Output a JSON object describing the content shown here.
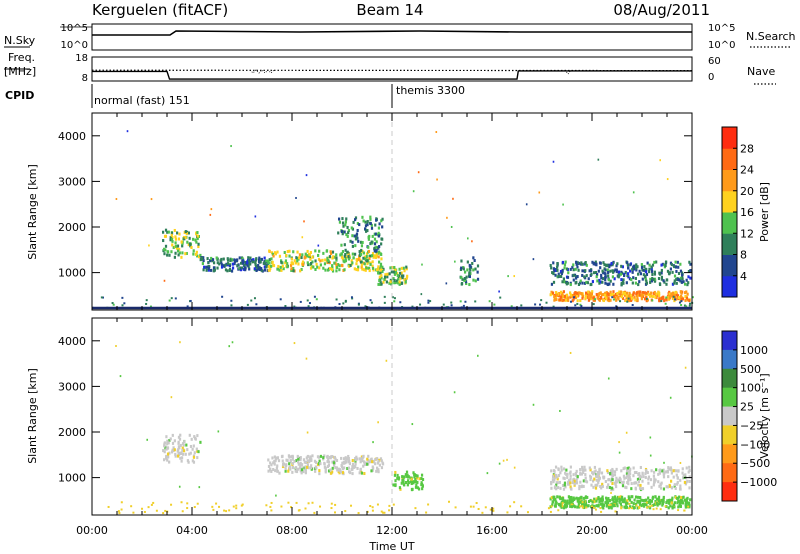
{
  "header": {
    "station": "Kerguelen (fitACF)",
    "beam": "Beam 14",
    "date": "08/Aug/2011"
  },
  "nsky_panel": {
    "left_label": "N.Sky",
    "right_label": "N.Search",
    "left_ticks": [
      "10^5",
      "10^0"
    ],
    "right_ticks": [
      "10^5",
      "10^0"
    ]
  },
  "freq_panel": {
    "left_label_top": "Freq.",
    "left_label_bottom": "[MHz]",
    "right_label": "Nave",
    "left_ticks": [
      "18",
      "8"
    ],
    "right_ticks": [
      "60",
      "0"
    ]
  },
  "cpid_panel": {
    "label": "CPID",
    "modes": [
      {
        "name": "normal (fast) 151",
        "start": 0.0
      },
      {
        "name": "themis 3300",
        "start": 12.0
      }
    ]
  },
  "time_axis": {
    "label": "Time UT",
    "ticks": [
      "00:00",
      "04:00",
      "08:00",
      "12:00",
      "16:00",
      "20:00",
      "00:00"
    ]
  },
  "range_axis": {
    "label": "Slant Range [km]",
    "ticks": [
      "1000",
      "2000",
      "3000",
      "4000"
    ]
  },
  "power_colorbar": {
    "label": "Power [dB]",
    "ticks": [
      "4",
      "8",
      "12",
      "16",
      "20",
      "24",
      "28"
    ],
    "colors": [
      "#1f2fe0",
      "#21468f",
      "#2f7f5a",
      "#4fc24f",
      "#ffd21f",
      "#ff9a1a",
      "#ff6a14",
      "#ff2d10"
    ]
  },
  "velocity_colorbar": {
    "label": "Velocity [m s⁻¹]",
    "ticks": [
      "1000",
      "500",
      "100",
      "25",
      "−25",
      "−100",
      "−500",
      "−1000"
    ],
    "colors": [
      "#2b2fd0",
      "#3a79c8",
      "#3c8a3c",
      "#57c842",
      "#c9c9c9",
      "#f0cf2a",
      "#ff9a1a",
      "#ff6a14",
      "#ff2d10"
    ]
  },
  "chart_data": {
    "type": "heatmap",
    "x_range_hours": [
      0,
      24
    ],
    "y_range_km": [
      180,
      4500
    ],
    "freq_mhz": [
      {
        "t": 0.0,
        "v": 12.0
      },
      {
        "t": 3.0,
        "v": 12.0
      },
      {
        "t": 3.1,
        "v": 8.8
      },
      {
        "t": 17.0,
        "v": 8.8
      },
      {
        "t": 17.05,
        "v": 12.2
      },
      {
        "t": 24.0,
        "v": 12.2
      }
    ],
    "nave": [
      {
        "t": 0.0,
        "v": 27
      },
      {
        "t": 24.0,
        "v": 26
      }
    ],
    "power_clusters": [
      {
        "t0": 2.8,
        "t1": 4.3,
        "r0": 1300,
        "r1": 1900,
        "level": 14
      },
      {
        "t0": 4.3,
        "t1": 7.0,
        "r0": 1000,
        "r1": 1300,
        "level": 8
      },
      {
        "t0": 7.0,
        "t1": 11.6,
        "r0": 1000,
        "r1": 1450,
        "level": 16
      },
      {
        "t0": 9.8,
        "t1": 11.6,
        "r0": 1400,
        "r1": 2200,
        "level": 10
      },
      {
        "t0": 11.3,
        "t1": 12.6,
        "r0": 700,
        "r1": 1100,
        "level": 14
      },
      {
        "t0": 14.7,
        "t1": 15.4,
        "r0": 700,
        "r1": 1300,
        "level": 10
      },
      {
        "t0": 18.3,
        "t1": 23.9,
        "r0": 350,
        "r1": 550,
        "level": 22
      },
      {
        "t0": 18.3,
        "t1": 23.9,
        "r0": 700,
        "r1": 1200,
        "level": 8
      }
    ],
    "velocity_clusters": [
      {
        "t0": 2.8,
        "t1": 4.3,
        "r0": 1300,
        "r1": 1900,
        "level": 25
      },
      {
        "t0": 7.0,
        "t1": 11.6,
        "r0": 1050,
        "r1": 1450,
        "level": 25
      },
      {
        "t0": 12.0,
        "t1": 13.2,
        "r0": 700,
        "r1": 1100,
        "level": 100
      },
      {
        "t0": 18.3,
        "t1": 23.9,
        "r0": 700,
        "r1": 1200,
        "level": 25
      },
      {
        "t0": 18.3,
        "t1": 23.9,
        "r0": 300,
        "r1": 550,
        "level": 100
      }
    ]
  }
}
